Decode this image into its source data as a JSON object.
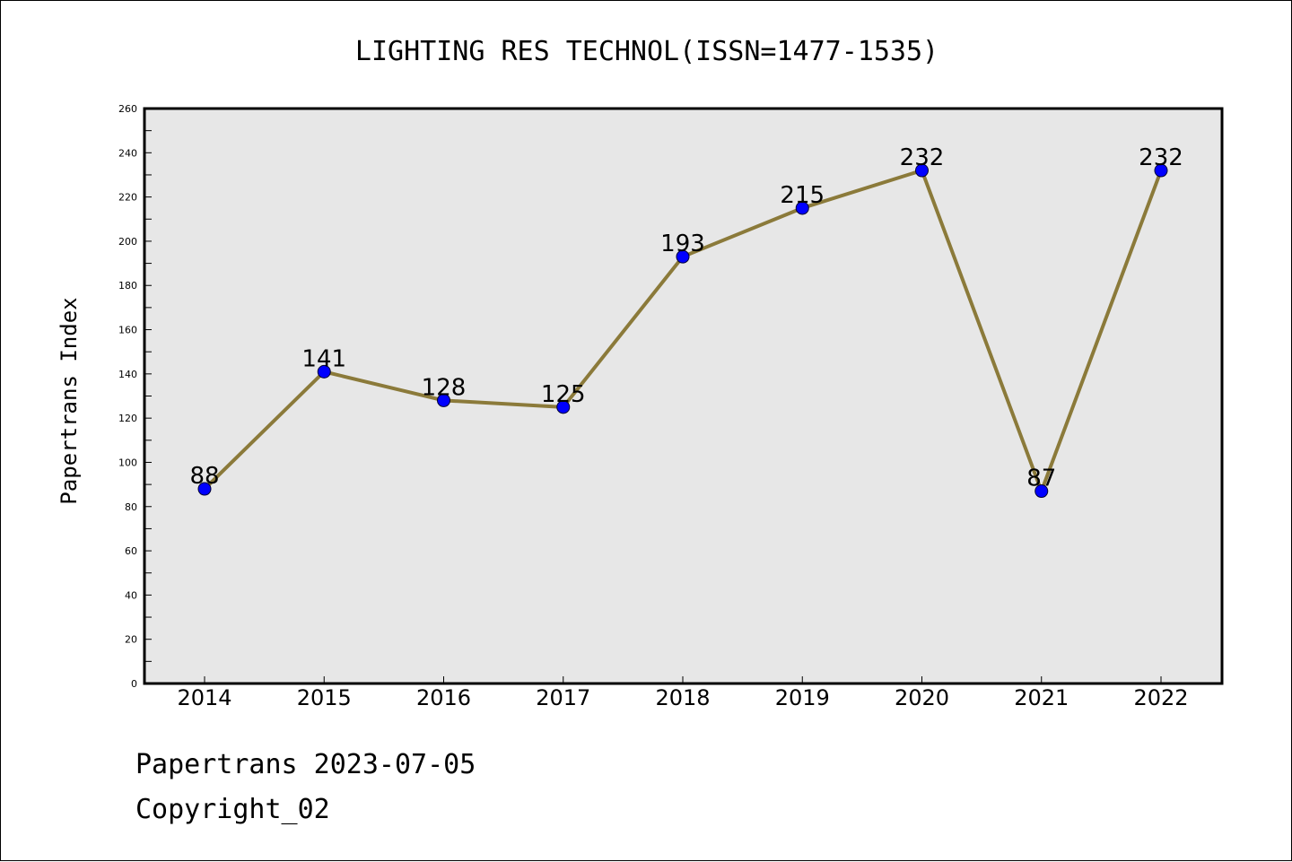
{
  "chart_data": {
    "type": "line",
    "title": "LIGHTING RES TECHNOL(ISSN=1477-1535)",
    "xlabel": "",
    "ylabel": "Papertrans Index",
    "categories": [
      "2014",
      "2015",
      "2016",
      "2017",
      "2018",
      "2019",
      "2020",
      "2021",
      "2022"
    ],
    "values": [
      88,
      141,
      128,
      125,
      193,
      215,
      232,
      87,
      232
    ],
    "ylim": [
      0,
      260
    ],
    "yticks": [
      0,
      20,
      40,
      60,
      80,
      100,
      120,
      140,
      160,
      180,
      200,
      220,
      240,
      260
    ],
    "grid": false,
    "line_color": "#8B7A3A",
    "marker_color": "#0000FF",
    "plot_bg": "#E7E7E7"
  },
  "footer": {
    "line1": "Papertrans 2023-07-05",
    "line2": "Copyright_02"
  }
}
